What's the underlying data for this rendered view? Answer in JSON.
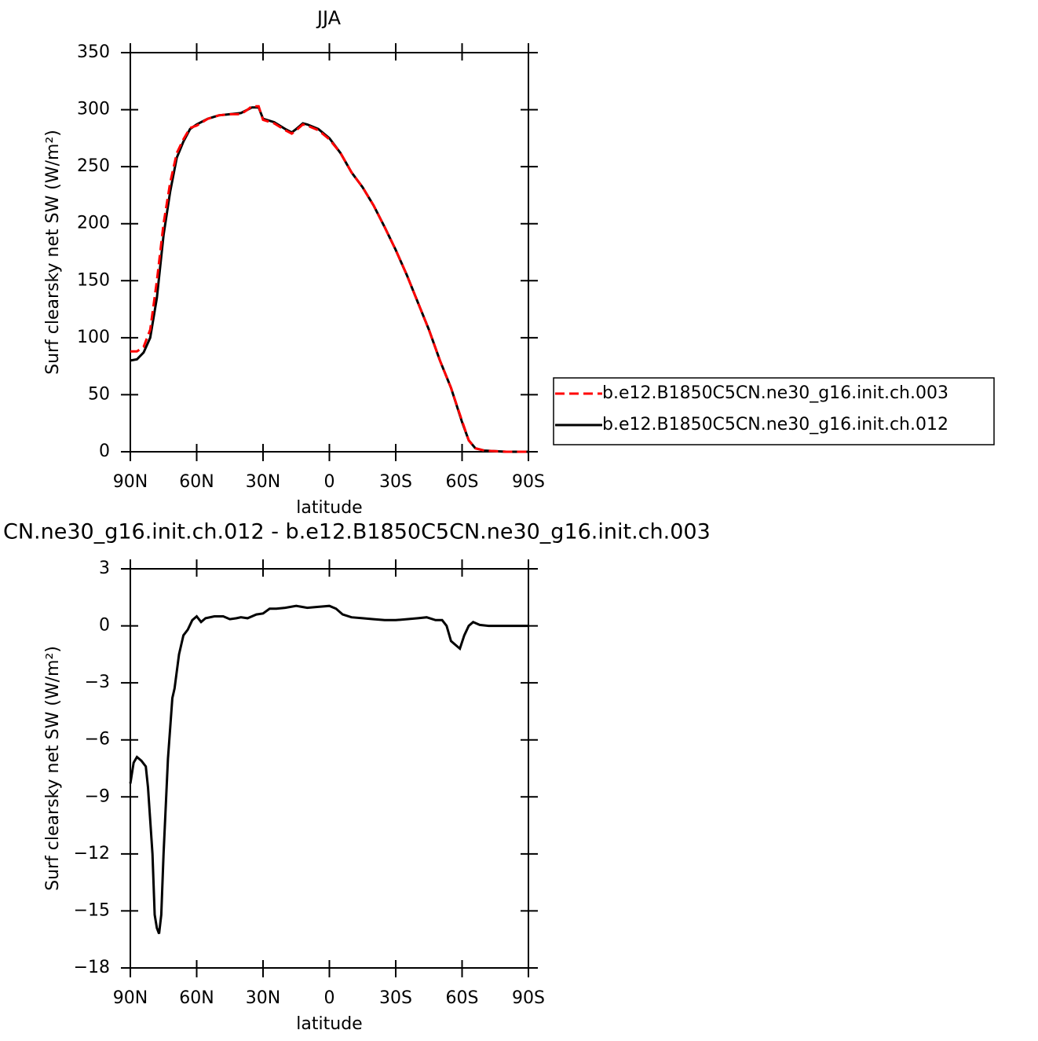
{
  "chart_data": [
    {
      "type": "line",
      "title": "JJA",
      "xlabel": "latitude",
      "ylabel": "Surf clearsky net SW (W/m²)",
      "x": [
        90,
        87,
        84,
        81,
        78,
        75,
        72,
        69,
        66,
        63,
        60,
        55,
        50,
        45,
        40,
        37,
        35,
        32,
        30,
        25,
        20,
        17,
        15,
        12,
        10,
        5,
        0,
        -5,
        -10,
        -15,
        -20,
        -25,
        -30,
        -35,
        -40,
        -45,
        -50,
        -55,
        -60,
        -63,
        -66,
        -70,
        -75,
        -80,
        -90
      ],
      "series": [
        {
          "name": "b.e12.B1850C5CN.ne30_g16.init.ch.003",
          "color": "#ff0000",
          "dash": true,
          "values": [
            88,
            88,
            92,
            107,
            150,
            200,
            236,
            262,
            274,
            284,
            286,
            292,
            295,
            296,
            296,
            300,
            303,
            303,
            291,
            288,
            282,
            279,
            282,
            287,
            286,
            282,
            274,
            262,
            245,
            232,
            216,
            197,
            177,
            155,
            131,
            107,
            80,
            56,
            27,
            10,
            3,
            1,
            0.5,
            0,
            0
          ]
        },
        {
          "name": "b.e12.B1850C5CN.ne30_g16.init.ch.012",
          "color": "#000000",
          "dash": false,
          "values": [
            80,
            81,
            87,
            100,
            135,
            190,
            228,
            258,
            272,
            283,
            287,
            292,
            295,
            296,
            297,
            300,
            302,
            302,
            292,
            289,
            283,
            280,
            283,
            288,
            287,
            283,
            275,
            262,
            245,
            232,
            216,
            197,
            177,
            155,
            131,
            107,
            80,
            56,
            26,
            10,
            3,
            1,
            0.5,
            0,
            0
          ]
        }
      ],
      "xlim": [
        90,
        -90
      ],
      "xticks": [
        {
          "value": 90,
          "label": "90N"
        },
        {
          "value": 60,
          "label": "60N"
        },
        {
          "value": 30,
          "label": "30N"
        },
        0,
        {
          "value": -30,
          "label": "30S"
        },
        {
          "value": -60,
          "label": "60S"
        },
        {
          "value": -90,
          "label": "90S"
        }
      ],
      "ylim": [
        0,
        350
      ],
      "yticks": [
        0,
        50,
        100,
        150,
        200,
        250,
        300,
        350
      ],
      "legend": "right"
    },
    {
      "type": "line",
      "title": "CN.ne30_g16.init.ch.012 - b.e12.B1850C5CN.ne30_g16.init.ch.003",
      "xlabel": "latitude",
      "ylabel": "Surf clearsky net SW (W/m²)",
      "x": [
        90,
        88.5,
        87,
        85,
        83,
        82,
        80,
        79,
        78,
        77,
        76,
        75,
        73,
        71,
        70,
        68,
        66,
        64,
        62,
        60,
        58,
        56,
        52,
        48,
        45,
        42,
        40,
        37,
        33,
        30,
        27,
        24,
        20,
        15,
        10,
        5,
        0,
        -3,
        -6,
        -10,
        -15,
        -20,
        -25,
        -30,
        -35,
        -40,
        -44,
        -48,
        -51,
        -53,
        -55,
        -57,
        -59,
        -61,
        -63,
        -65,
        -68,
        -72,
        -80,
        -90
      ],
      "values": [
        -8.3,
        -7.2,
        -6.9,
        -7.1,
        -7.4,
        -8.5,
        -12,
        -15.2,
        -15.9,
        -16.2,
        -15.2,
        -12,
        -7,
        -3.8,
        -3.3,
        -1.5,
        -0.5,
        -0.2,
        0.3,
        0.5,
        0.2,
        0.4,
        0.5,
        0.5,
        0.35,
        0.4,
        0.45,
        0.4,
        0.6,
        0.65,
        0.9,
        0.9,
        0.95,
        1.05,
        0.95,
        1.0,
        1.05,
        0.9,
        0.6,
        0.45,
        0.4,
        0.35,
        0.3,
        0.3,
        0.35,
        0.4,
        0.45,
        0.3,
        0.3,
        0,
        -0.8,
        -1.0,
        -1.2,
        -0.5,
        0,
        0.2,
        0.05,
        0,
        0,
        0
      ],
      "color": "#000000",
      "xlim": [
        90,
        -90
      ],
      "xticks": [
        {
          "value": 90,
          "label": "90N"
        },
        {
          "value": 60,
          "label": "60N"
        },
        {
          "value": 30,
          "label": "30N"
        },
        0,
        {
          "value": -30,
          "label": "30S"
        },
        {
          "value": -60,
          "label": "60S"
        },
        {
          "value": -90,
          "label": "90S"
        }
      ],
      "ylim": [
        -18,
        3
      ],
      "yticks": [
        -18,
        -15,
        -12,
        -9,
        -6,
        -3,
        0,
        3
      ]
    }
  ]
}
